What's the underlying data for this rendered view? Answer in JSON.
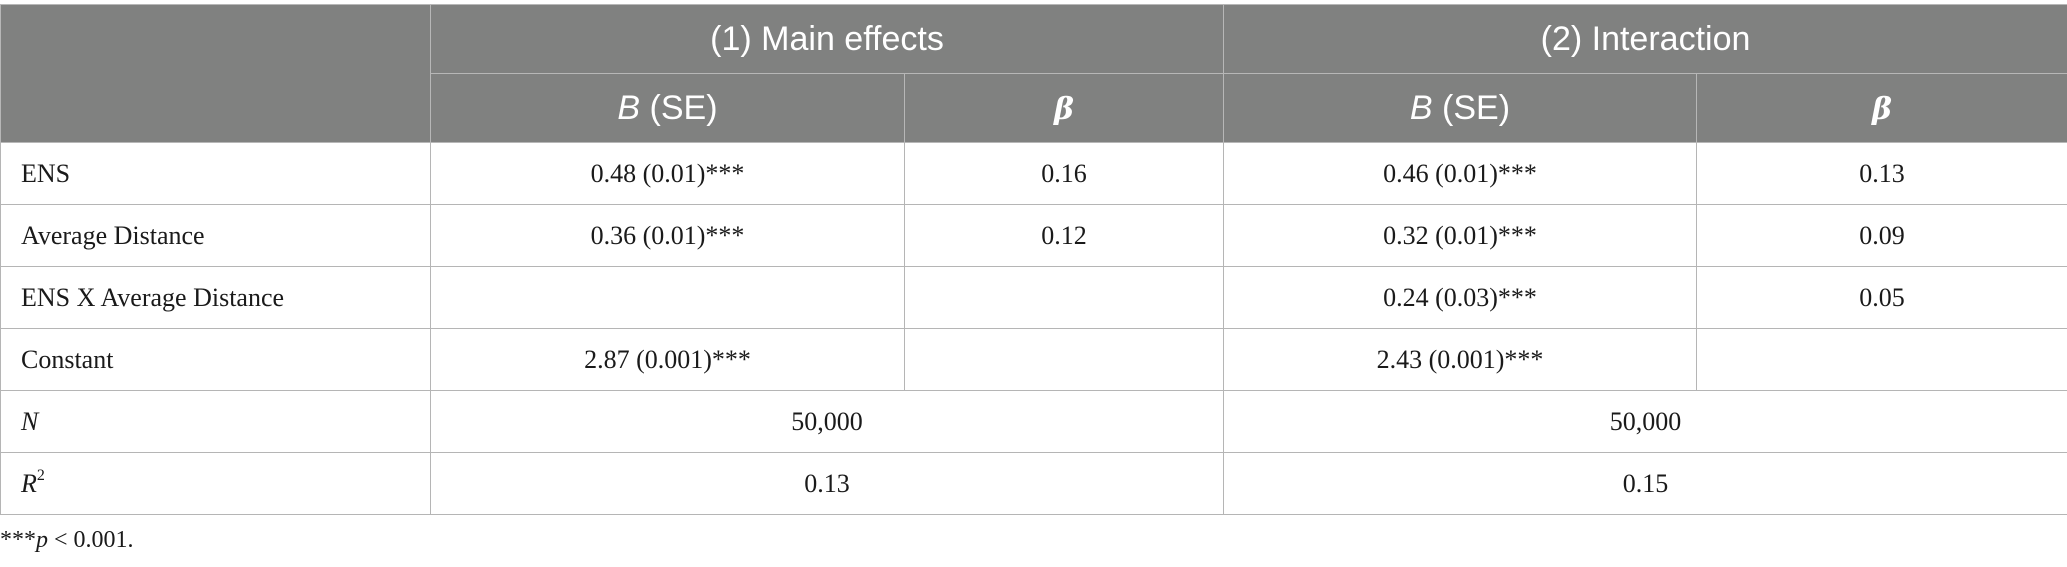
{
  "headers": {
    "group1": "(1) Main effects",
    "group2": "(2) Interaction",
    "b_label": "B",
    "se_label": " (SE)",
    "beta": "β"
  },
  "rows": [
    {
      "label": "ENS",
      "m_b": "0.48 (0.01)***",
      "m_beta": "0.16",
      "i_b": "0.46 (0.01)***",
      "i_beta": "0.13"
    },
    {
      "label": "Average Distance",
      "m_b": "0.36 (0.01)***",
      "m_beta": "0.12",
      "i_b": "0.32 (0.01)***",
      "i_beta": "0.09"
    },
    {
      "label": "ENS X Average Distance",
      "m_b": "",
      "m_beta": "",
      "i_b": "0.24 (0.03)***",
      "i_beta": "0.05"
    },
    {
      "label": "Constant",
      "m_b": "2.87 (0.001)***",
      "m_beta": "",
      "i_b": "2.43 (0.001)***",
      "i_beta": ""
    }
  ],
  "summary": {
    "n_label": "N",
    "n_main": "50,000",
    "n_inter": "50,000",
    "r2_label": "R",
    "r2_sup": "2",
    "r2_main": "0.13",
    "r2_inter": "0.15"
  },
  "note": {
    "stars": "***",
    "p": "p",
    "rest": " < 0.001."
  }
}
